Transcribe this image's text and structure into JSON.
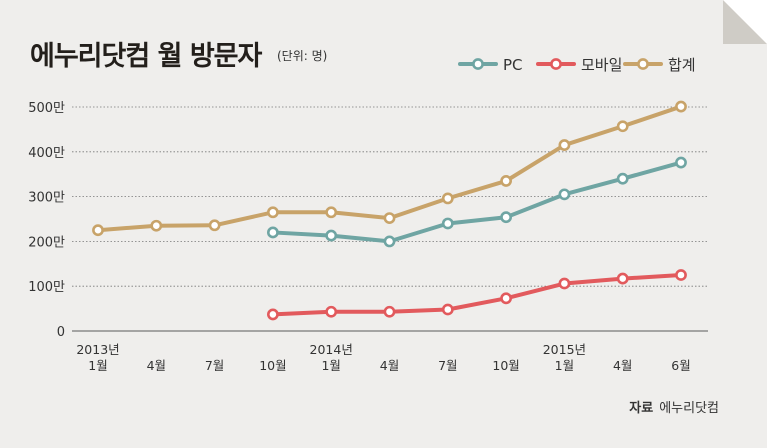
{
  "title": "에누리닷컴 월 방문자",
  "unit_note": "(단위: 명)",
  "source": {
    "label": "자료",
    "value": "에누리닷컴"
  },
  "colors": {
    "pc": "#6fa5a3",
    "mobile": "#e25a5d",
    "total": "#c8a369",
    "grid": "#777777"
  },
  "chart_data": {
    "type": "line",
    "title": "에누리닷컴 월 방문자",
    "unit": "(단위: 명)",
    "x": [
      {
        "year": "2013년",
        "month": "1월"
      },
      {
        "year": "",
        "month": "4월"
      },
      {
        "year": "",
        "month": "7월"
      },
      {
        "year": "",
        "month": "10월"
      },
      {
        "year": "2014년",
        "month": "1월"
      },
      {
        "year": "",
        "month": "4월"
      },
      {
        "year": "",
        "month": "7월"
      },
      {
        "year": "",
        "month": "10월"
      },
      {
        "year": "2015년",
        "month": "1월"
      },
      {
        "year": "",
        "month": "4월"
      },
      {
        "year": "",
        "month": "6월"
      }
    ],
    "yticks": [
      "0",
      "100만",
      "200만",
      "300만",
      "400만",
      "500만"
    ],
    "ylim": [
      0,
      5000000
    ],
    "grid": true,
    "legend_position": "top-right",
    "series": [
      {
        "name": "PC",
        "color": "#6fa5a3",
        "values": [
          null,
          null,
          null,
          2200000,
          2130000,
          2000000,
          2400000,
          2540000,
          3050000,
          3400000,
          3760000
        ]
      },
      {
        "name": "모바일",
        "color": "#e25a5d",
        "values": [
          null,
          null,
          null,
          370000,
          430000,
          430000,
          480000,
          730000,
          1060000,
          1170000,
          1250000
        ]
      },
      {
        "name": "합계",
        "color": "#c8a369",
        "values": [
          2250000,
          2350000,
          2360000,
          2650000,
          2650000,
          2520000,
          2960000,
          3350000,
          4150000,
          4570000,
          5010000
        ]
      }
    ]
  }
}
